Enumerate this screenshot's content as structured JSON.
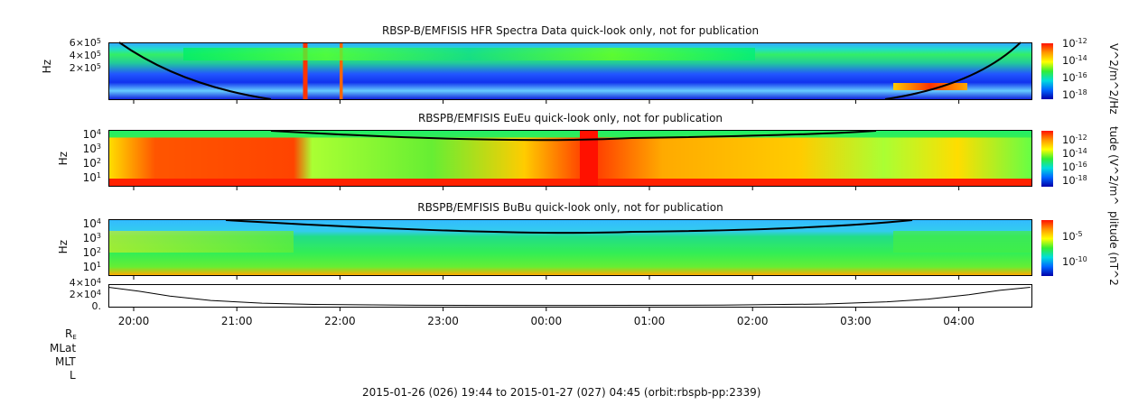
{
  "chart_data": {
    "type": "heatmap",
    "x_range": [
      "19:44",
      "04:45"
    ],
    "x_ticks": [
      "20:00",
      "21:00",
      "22:00",
      "23:00",
      "00:00",
      "01:00",
      "02:00",
      "03:00",
      "04:00"
    ],
    "footer": "2015-01-26 (026) 19:44 to 2015-01-27 (027) 04:45 (orbit:rbspb-pp:2339)",
    "ephemeris_labels": [
      "R",
      "E",
      "MLat",
      "MLT",
      "L"
    ],
    "panels": [
      {
        "title": "RBSP-B/EMFISIS  HFR Spectra Data quick-look only, not for publication",
        "ylabel": "Hz",
        "yticks": [
          {
            "m": "6",
            "e": "5"
          },
          {
            "m": "4",
            "e": "5"
          },
          {
            "m": "2",
            "e": "5"
          }
        ],
        "ytick_sep": "×10",
        "colorbar_label": "V^2/m^2/Hz",
        "colorbar_ticks": [
          "-12",
          "-14",
          "-16",
          "-18"
        ]
      },
      {
        "title": "RBSPB/EMFISIS  EuEu quick-look only, not for publication",
        "ylabel": "Hz",
        "yticks": [
          "4",
          "3",
          "2",
          "1"
        ],
        "colorbar_label": "tude (V^2/m^",
        "colorbar_ticks": [
          "-12",
          "-14",
          "-16",
          "-18"
        ]
      },
      {
        "title": "RBSPB/EMFISIS  BuBu quick-look only, not for publication",
        "ylabel": "Hz",
        "yticks": [
          "4",
          "3",
          "2",
          "1"
        ],
        "colorbar_label": "plitude (nT^2",
        "colorbar_ticks": [
          "-5",
          "-10"
        ]
      },
      {
        "type": "line",
        "yticks": [
          {
            "m": "4",
            "e": "4"
          },
          {
            "m": "2",
            "e": "4"
          }
        ],
        "y0": "0.",
        "y_range": [
          0,
          45000
        ],
        "x_hours": [
          0,
          0.3,
          0.6,
          1.0,
          1.5,
          2.0,
          3.0,
          4.0,
          5.0,
          6.0,
          7.0,
          7.6,
          8.0,
          8.4,
          8.7,
          9.0
        ],
        "values": [
          42000,
          33000,
          22000,
          12000,
          6000,
          3000,
          1200,
          800,
          900,
          1500,
          4000,
          9000,
          15000,
          25000,
          35000,
          42000
        ]
      }
    ],
    "base": "10"
  }
}
